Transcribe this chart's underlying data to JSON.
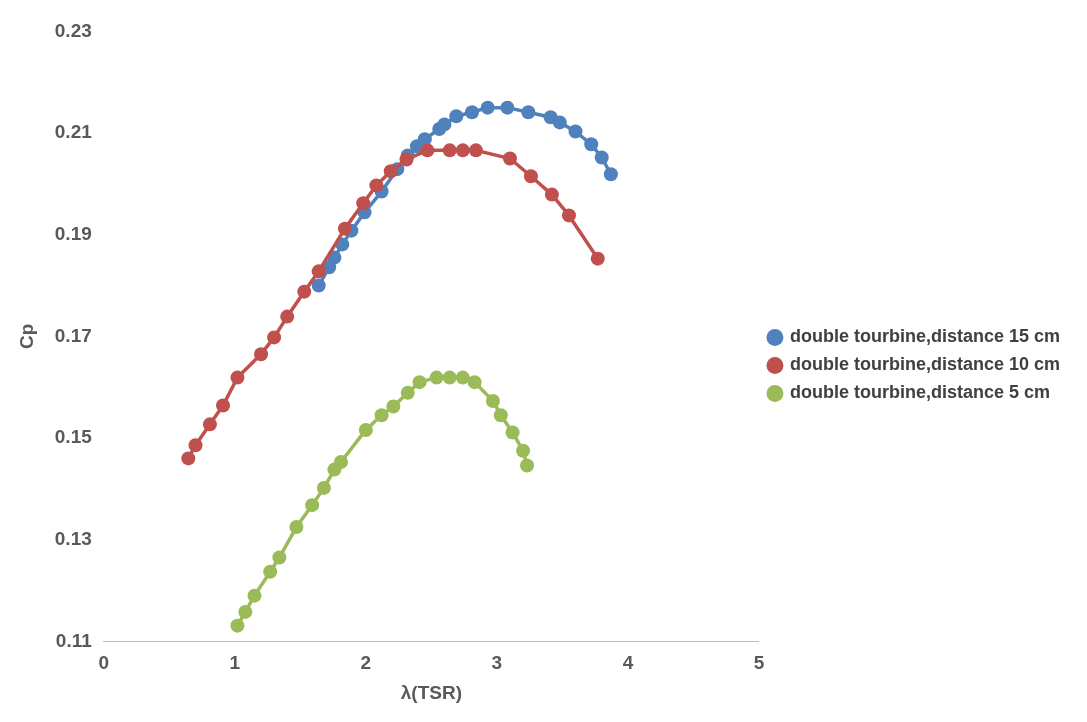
{
  "chart_data": {
    "type": "line",
    "xlabel": "λ(TSR)",
    "ylabel": "Cp",
    "xlim": [
      0,
      5
    ],
    "xticks": [
      0,
      1,
      2,
      3,
      4,
      5
    ],
    "ylim": [
      0.11,
      0.23
    ],
    "yticks": [
      0.11,
      0.13,
      0.15,
      0.17,
      0.19,
      0.21,
      0.23
    ],
    "grid": false,
    "legend": "right",
    "marker": "circle",
    "line_style": "solid",
    "series": [
      {
        "name": "double tourbine,distance 15 cm",
        "color": "#4f81bd",
        "x": [
          1.64,
          1.72,
          1.76,
          1.82,
          1.89,
          1.99,
          2.12,
          2.24,
          2.32,
          2.39,
          2.45,
          2.56,
          2.6,
          2.69,
          2.81,
          2.93,
          3.08,
          3.24,
          3.41,
          3.48,
          3.6,
          3.72,
          3.8,
          3.87
        ],
        "values": [
          0.18,
          0.1836,
          0.1855,
          0.1881,
          0.1908,
          0.1944,
          0.1985,
          0.2029,
          0.2056,
          0.2074,
          0.2088,
          0.2108,
          0.2117,
          0.2133,
          0.2141,
          0.215,
          0.215,
          0.2141,
          0.2131,
          0.2121,
          0.2103,
          0.2078,
          0.2052,
          0.2019
        ]
      },
      {
        "name": "double tourbine,distance 10 cm",
        "color": "#c0504d",
        "x": [
          0.645,
          0.7,
          0.81,
          0.91,
          1.02,
          1.2,
          1.3,
          1.4,
          1.53,
          1.64,
          1.84,
          1.98,
          2.08,
          2.19,
          2.31,
          2.47,
          2.64,
          2.74,
          2.84,
          3.1,
          3.26,
          3.42,
          3.55,
          3.77
        ],
        "values": [
          0.146,
          0.1486,
          0.1527,
          0.1564,
          0.1619,
          0.1665,
          0.1698,
          0.1739,
          0.1788,
          0.1828,
          0.1912,
          0.1962,
          0.1997,
          0.2025,
          0.2048,
          0.2066,
          0.2066,
          0.2066,
          0.2066,
          0.205,
          0.2015,
          0.1979,
          0.1938,
          0.1853
        ]
      },
      {
        "name": "double tourbine,distance 5 cm",
        "color": "#9bbb59",
        "x": [
          1.02,
          1.08,
          1.15,
          1.27,
          1.34,
          1.47,
          1.59,
          1.68,
          1.76,
          1.81,
          2.0,
          2.12,
          2.21,
          2.32,
          2.41,
          2.54,
          2.64,
          2.74,
          2.83,
          2.97,
          3.03,
          3.12,
          3.2,
          3.23
        ],
        "values": [
          0.1131,
          0.1158,
          0.119,
          0.1237,
          0.1265,
          0.1325,
          0.1368,
          0.1402,
          0.1438,
          0.1453,
          0.1516,
          0.1545,
          0.1562,
          0.1589,
          0.161,
          0.1619,
          0.1619,
          0.1619,
          0.161,
          0.1573,
          0.1545,
          0.1511,
          0.1475,
          0.1446
        ]
      }
    ]
  }
}
